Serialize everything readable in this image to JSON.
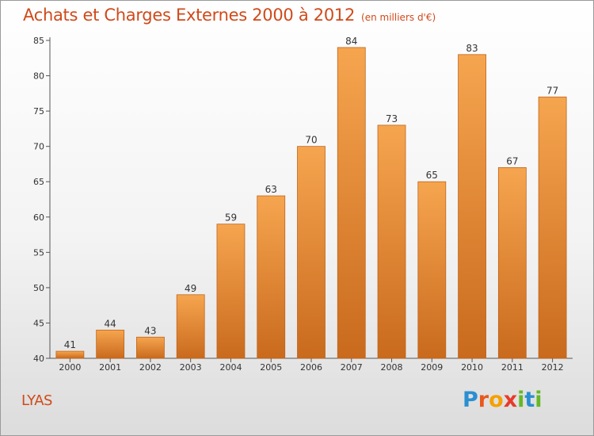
{
  "title": "Achats et Charges Externes 2000 à 2012",
  "subtitle": "(en milliers d'€)",
  "commune": "LYAS",
  "logo": {
    "letters": [
      "P",
      "r",
      "o",
      "x",
      "i",
      "t",
      "i"
    ],
    "colors": [
      "#2a8fd1",
      "#e8581c",
      "#f5a000",
      "#e83a2a",
      "#66b826",
      "#2a8fd1",
      "#66b826"
    ]
  },
  "colors": {
    "accent": "#d04a1a",
    "bar_top": "#f6a54f",
    "bar_bottom": "#c96a1d"
  },
  "chart_data": {
    "type": "bar",
    "title": "Achats et Charges Externes 2000 à 2012",
    "subtitle": "(en milliers d'€)",
    "xlabel": "",
    "ylabel": "",
    "categories": [
      "2000",
      "2001",
      "2002",
      "2003",
      "2004",
      "2005",
      "2006",
      "2007",
      "2008",
      "2009",
      "2010",
      "2011",
      "2012"
    ],
    "values": [
      41,
      44,
      43,
      49,
      59,
      63,
      70,
      84,
      73,
      65,
      83,
      67,
      77
    ],
    "ylim": [
      40,
      85
    ],
    "yticks": [
      40,
      45,
      50,
      55,
      60,
      65,
      70,
      75,
      80,
      85
    ],
    "grid": false,
    "legend": "none"
  }
}
